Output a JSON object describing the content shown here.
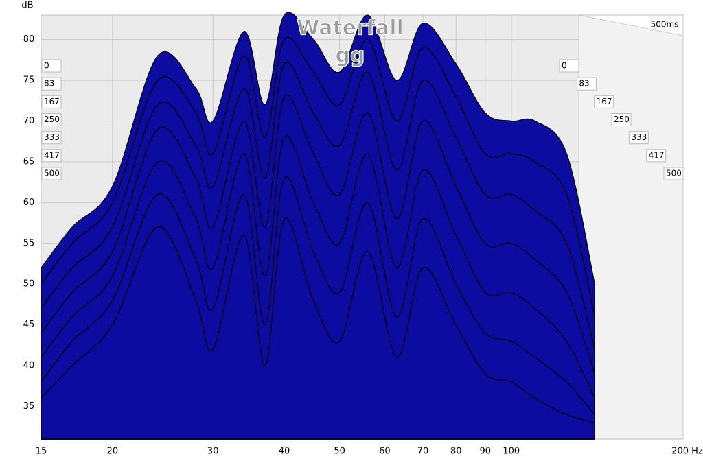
{
  "chart_data": {
    "type": "waterfall",
    "title": "Waterfall",
    "subtitle": "gg",
    "y_label": "dB",
    "depth_label": "500ms",
    "x": [
      15,
      17,
      20,
      24,
      28,
      30,
      34,
      37,
      40,
      45,
      50,
      56,
      63,
      70,
      80,
      90,
      100,
      110,
      125,
      140
    ],
    "series": [
      {
        "name": "0",
        "color": "#0c0ca0",
        "values": [
          52,
          57,
          62,
          78,
          74,
          70,
          81,
          72,
          83,
          80,
          76,
          83,
          75,
          82,
          77,
          71,
          70,
          70,
          66,
          50
        ]
      },
      {
        "name": "83",
        "color": "#0c0ca0",
        "values": [
          50,
          55,
          60,
          75,
          71,
          66,
          78,
          68,
          80,
          76,
          72,
          80,
          70,
          79,
          73,
          66,
          66,
          65,
          61,
          46
        ]
      },
      {
        "name": "167",
        "color": "#0c0ca0",
        "values": [
          47,
          52,
          57,
          72,
          67,
          62,
          74,
          63,
          77,
          71,
          67,
          76,
          64,
          75,
          68,
          61,
          61,
          59,
          55,
          42
        ]
      },
      {
        "name": "250",
        "color": "#0c0ca0",
        "values": [
          44,
          49,
          54,
          69,
          63,
          57,
          70,
          57,
          73,
          66,
          61,
          71,
          58,
          70,
          62,
          55,
          55,
          53,
          49,
          39
        ]
      },
      {
        "name": "333",
        "color": "#0c0ca0",
        "values": [
          41,
          46,
          51,
          65,
          58,
          52,
          66,
          51,
          68,
          60,
          55,
          66,
          52,
          64,
          56,
          49,
          49,
          47,
          43,
          36
        ]
      },
      {
        "name": "417",
        "color": "#0c0ca0",
        "values": [
          38,
          43,
          48,
          61,
          53,
          47,
          61,
          45,
          63,
          54,
          49,
          60,
          46,
          58,
          50,
          44,
          43,
          41,
          38,
          34
        ]
      },
      {
        "name": "500",
        "color": "#0c0ca0",
        "values": [
          36,
          40,
          45,
          57,
          48,
          42,
          56,
          40,
          58,
          48,
          43,
          54,
          41,
          52,
          45,
          39,
          38,
          36,
          34,
          33
        ]
      }
    ],
    "xlim": [
      15,
      200
    ],
    "xticks": [
      15,
      20,
      30,
      40,
      50,
      60,
      70,
      80,
      90,
      100,
      {
        "value": 200,
        "label": "200 Hz"
      }
    ],
    "log_x": true,
    "ylim": [
      31,
      83
    ],
    "yticks": [
      35,
      40,
      45,
      50,
      55,
      60,
      65,
      70,
      75,
      80
    ],
    "grid": true
  }
}
